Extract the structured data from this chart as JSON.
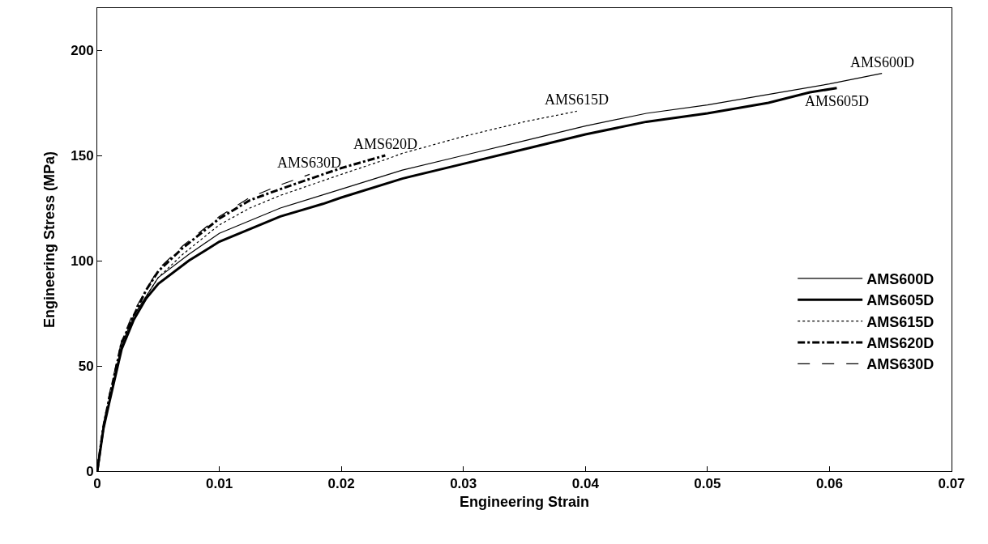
{
  "chart_data": {
    "type": "line",
    "xlabel": "Engineering Strain",
    "ylabel": "Engineering Stress (MPa)",
    "xlim": [
      0,
      0.07
    ],
    "xticks": [
      0,
      0.01,
      0.02,
      0.03,
      0.04,
      0.05,
      0.06,
      0.07
    ],
    "ylim": [
      0,
      220
    ],
    "yticks": [
      0,
      50,
      100,
      150,
      200
    ],
    "grid": false,
    "legend": "bottom right",
    "marker": "none",
    "series": [
      {
        "name": "AMS600D",
        "color": "#000000",
        "line_style": "solid",
        "x": [
          0,
          0.0005,
          0.001,
          0.002,
          0.003,
          0.005,
          0.0075,
          0.01,
          0.015,
          0.02,
          0.025,
          0.03,
          0.035,
          0.04,
          0.045,
          0.05,
          0.055,
          0.06,
          0.0643
        ],
        "values": [
          0,
          21,
          34,
          60,
          74,
          92,
          103,
          113,
          125,
          134,
          143,
          150,
          157,
          164,
          170,
          174,
          179,
          184,
          189
        ]
      },
      {
        "name": "AMS605D",
        "color": "#000000",
        "line_style": "solid",
        "x": [
          0,
          0.0005,
          0.001,
          0.002,
          0.003,
          0.004,
          0.005,
          0.0075,
          0.01,
          0.015,
          0.0185,
          0.02,
          0.025,
          0.03,
          0.035,
          0.04,
          0.045,
          0.05,
          0.055,
          0.0584,
          0.0606
        ],
        "values": [
          0,
          20,
          33,
          58,
          72,
          82,
          89,
          100,
          109,
          121,
          127,
          130,
          139,
          146,
          153,
          160,
          166,
          170,
          175,
          180,
          182
        ]
      },
      {
        "name": "AMS615D",
        "color": "#000000",
        "line_style": "dotted",
        "x": [
          0,
          0.0005,
          0.001,
          0.002,
          0.003,
          0.005,
          0.007,
          0.01,
          0.0125,
          0.015,
          0.02,
          0.0236,
          0.025,
          0.03,
          0.035,
          0.0393
        ],
        "values": [
          0,
          21,
          35,
          60,
          74,
          92,
          103,
          117,
          125,
          131,
          141,
          148,
          151,
          159,
          166,
          171
        ]
      },
      {
        "name": "AMS620D",
        "color": "#000000",
        "line_style": "dashdot",
        "x": [
          0,
          0.0005,
          0.001,
          0.002,
          0.003,
          0.004,
          0.005,
          0.007,
          0.01,
          0.0125,
          0.015,
          0.017,
          0.02,
          0.0236
        ],
        "values": [
          0,
          21,
          35,
          61,
          74,
          86,
          95,
          106,
          120,
          128.7,
          134,
          138,
          144,
          150
        ]
      },
      {
        "name": "AMS630D",
        "color": "#000000",
        "line_style": "dashed",
        "x": [
          0,
          0.0005,
          0.001,
          0.002,
          0.003,
          0.005,
          0.007,
          0.01,
          0.0125,
          0.015,
          0.0174
        ],
        "values": [
          0,
          22,
          37,
          62,
          76,
          96,
          107,
          121,
          130,
          136,
          141
        ]
      }
    ],
    "annotations": [
      {
        "text": "AMS630D",
        "x": 0.0174,
        "y": 141
      },
      {
        "text": "AMS620D",
        "x": 0.0236,
        "y": 150
      },
      {
        "text": "AMS615D",
        "x": 0.0393,
        "y": 171
      },
      {
        "text": "AMS600D",
        "x": 0.0643,
        "y": 189
      },
      {
        "text": "AMS605D",
        "x": 0.0606,
        "y": 182
      }
    ]
  }
}
